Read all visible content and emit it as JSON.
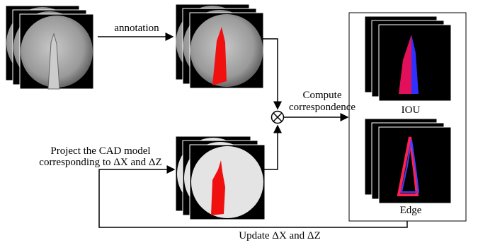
{
  "arrows": {
    "annotation": "annotation",
    "compute": [
      "Compute",
      "correspondence"
    ],
    "project": [
      "Project the CAD model",
      "corresponding to ΔX and ΔZ"
    ],
    "update": "Update ΔX and ΔZ"
  },
  "results": {
    "iou": "IOU",
    "edge": "Edge"
  }
}
